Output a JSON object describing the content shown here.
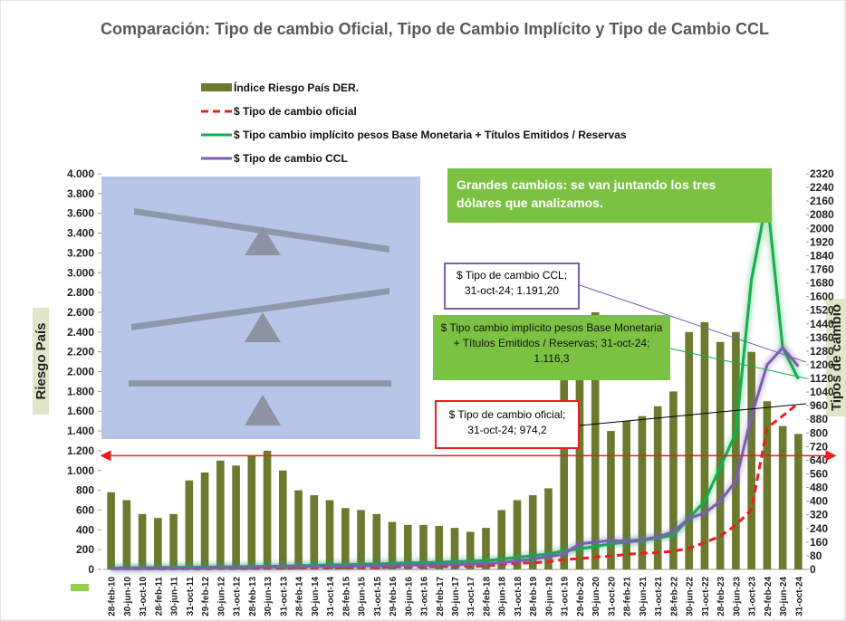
{
  "chart_data": {
    "type": "bar_line",
    "title": "Comparación: Tipo de cambio Oficial, Tipo de Cambio Implícito y Tipo de Cambio CCL",
    "y_label": "Riesgo País",
    "y2_label": "Tipos de cambio",
    "categories": [
      "28-feb-10",
      "30-jun-10",
      "31-oct-10",
      "28-feb-11",
      "30-jun-11",
      "31-oct-11",
      "29-feb-12",
      "30-jun-12",
      "31-oct-12",
      "28-feb-13",
      "30-jun-13",
      "31-oct-13",
      "28-feb-14",
      "30-jun-14",
      "31-oct-14",
      "28-feb-15",
      "30-jun-15",
      "31-oct-15",
      "29-feb-16",
      "30-jun-16",
      "31-oct-16",
      "28-feb-17",
      "30-jun-17",
      "31-oct-17",
      "28-feb-18",
      "30-jun-18",
      "31-oct-18",
      "28-feb-19",
      "30-jun-19",
      "31-oct-19",
      "29-feb-20",
      "30-jun-20",
      "31-oct-20",
      "28-feb-21",
      "30-jun-21",
      "31-oct-21",
      "28-feb-22",
      "30-jun-22",
      "31-oct-22",
      "28-feb-23",
      "30-jun-23",
      "31-oct-23",
      "29-feb-24",
      "30-jun-24",
      "31-oct-24"
    ],
    "series": [
      {
        "name": "Índice Riesgo País DER.",
        "kind": "bar",
        "color": "#6b7a2e",
        "values": [
          780,
          700,
          560,
          520,
          560,
          900,
          980,
          1100,
          1050,
          1150,
          1200,
          1000,
          800,
          750,
          700,
          620,
          600,
          560,
          480,
          450,
          450,
          440,
          420,
          380,
          420,
          600,
          700,
          750,
          820,
          2200,
          2000,
          2600,
          1400,
          1500,
          1550,
          1650,
          1800,
          2400,
          2500,
          2300,
          2400,
          2200,
          1700,
          1450,
          1370
        ]
      },
      {
        "name": "$ Tipo de cambio oficial",
        "kind": "line",
        "axis": "y2",
        "color": "#ee1c1c",
        "dashed": true,
        "values": [
          3.9,
          3.9,
          4.0,
          4.1,
          4.2,
          4.3,
          4.4,
          4.6,
          4.8,
          5.0,
          5.4,
          6.0,
          7.8,
          8.1,
          8.5,
          8.8,
          9.1,
          9.6,
          14.2,
          15.0,
          15.5,
          15.7,
          17.4,
          17.9,
          20.1,
          28.8,
          37.0,
          39.0,
          44.5,
          58.0,
          63.0,
          72.0,
          78.0,
          88.0,
          95.0,
          98.0,
          106,
          125,
          157,
          195,
          260,
          350,
          830,
          900,
          974.2
        ]
      },
      {
        "name": "$ Tipo cambio implícito pesos Base Monetaria + Títulos Emitidos / Reservas",
        "kind": "line",
        "axis": "y2",
        "color": "#12b04a",
        "values": [
          8,
          9,
          10,
          11,
          12,
          13,
          14,
          15,
          16,
          17,
          18,
          20,
          22,
          24,
          26,
          28,
          30,
          32,
          35,
          38,
          40,
          42,
          45,
          48,
          52,
          60,
          70,
          80,
          90,
          110,
          120,
          135,
          150,
          160,
          170,
          185,
          200,
          300,
          400,
          600,
          800,
          1700,
          2180,
          1300,
          1116.3
        ]
      },
      {
        "name": "$ Tipo de cambio CCL",
        "kind": "line",
        "axis": "y2",
        "color": "#7b5fb0",
        "values": [
          5,
          5,
          5,
          6,
          6,
          7,
          8,
          9,
          10,
          12,
          14,
          15,
          16,
          17,
          18,
          19,
          20,
          22,
          24,
          25,
          26,
          27,
          28,
          30,
          35,
          40,
          50,
          60,
          75,
          90,
          150,
          160,
          170,
          165,
          175,
          190,
          220,
          300,
          330,
          400,
          520,
          900,
          1200,
          1300,
          1191.2
        ]
      }
    ],
    "ylim": [
      0,
      4000
    ],
    "yticks": [
      {
        "value": 0,
        "label": "0"
      },
      {
        "value": 200,
        "label": "200"
      },
      {
        "value": 400,
        "label": "400"
      },
      {
        "value": 600,
        "label": "600"
      },
      {
        "value": 800,
        "label": "800"
      },
      {
        "value": 1000,
        "label": "1.000"
      },
      {
        "value": 1200,
        "label": "1.200"
      },
      {
        "value": 1400,
        "label": "1.400"
      },
      {
        "value": 1600,
        "label": "1.600"
      },
      {
        "value": 1800,
        "label": "1.800"
      },
      {
        "value": 2000,
        "label": "2.000"
      },
      {
        "value": 2200,
        "label": "2.200"
      },
      {
        "value": 2400,
        "label": "2.400"
      },
      {
        "value": 2600,
        "label": "2.600"
      },
      {
        "value": 2800,
        "label": "2.800"
      },
      {
        "value": 3000,
        "label": "3.000"
      },
      {
        "value": 3200,
        "label": "3.200"
      },
      {
        "value": 3400,
        "label": "3.400"
      },
      {
        "value": 3600,
        "label": "3.600"
      },
      {
        "value": 3800,
        "label": "3.800"
      },
      {
        "value": 4000,
        "label": "4.000"
      }
    ],
    "y2lim": [
      0,
      2320
    ],
    "y2ticks": [
      0,
      80,
      160,
      240,
      320,
      400,
      480,
      560,
      640,
      720,
      800,
      880,
      960,
      1040,
      1120,
      1200,
      1280,
      1360,
      1440,
      1520,
      1600,
      1680,
      1760,
      1840,
      1920,
      2000,
      2080,
      2160,
      2240,
      2320
    ],
    "reference_line": {
      "value": 1150,
      "color": "#ee1c1c"
    },
    "annotations": [
      "Grandes cambios: se van juntando los tres dólares que analizamos.",
      "$ Tipo de cambio CCL; 31-oct-24;  1.191,20",
      "$ Tipo cambio implícito pesos Base Monetaria + Títulos Emitidos / Reservas; 31-oct-24;  1.116,3",
      "$ Tipo de cambio oficial; 31-oct-24; 974,2"
    ]
  }
}
